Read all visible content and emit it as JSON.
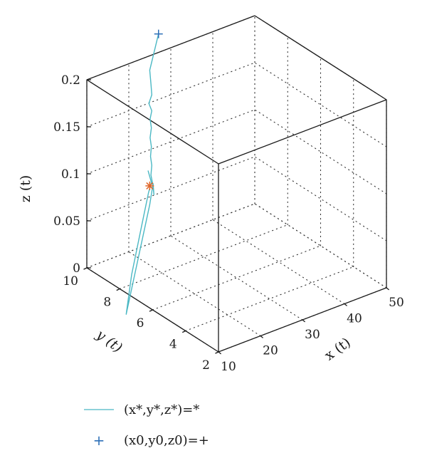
{
  "chart_data": {
    "type": "line3d",
    "title": "",
    "xlabel": "x (t)",
    "ylabel": "y (t)",
    "zlabel": "z (t)",
    "xlim": [
      10,
      50
    ],
    "ylim": [
      2,
      10
    ],
    "zlim": [
      0,
      0.2
    ],
    "xticks": [
      "10",
      "20",
      "30",
      "40",
      "50"
    ],
    "yticks": [
      "2",
      "4",
      "6",
      "8",
      "10"
    ],
    "zticks": [
      "0",
      "0.05",
      "0.1",
      "0.15",
      "0.2"
    ],
    "grid": true,
    "legend_position": "bottom",
    "series": [
      {
        "name": "(x*,y*,z*)=*",
        "color": "#4bb8c4",
        "kind": "line",
        "points": [
          [
            25.9,
            9.7,
            0.225
          ],
          [
            23.8,
            9.7,
            0.19
          ],
          [
            24.1,
            9.7,
            0.175
          ],
          [
            24.3,
            9.7,
            0.163
          ],
          [
            23.6,
            9.7,
            0.155
          ],
          [
            24.3,
            9.7,
            0.146
          ],
          [
            23.9,
            9.7,
            0.138
          ],
          [
            24.2,
            9.7,
            0.128
          ],
          [
            23.9,
            9.7,
            0.118
          ],
          [
            24.2,
            9.7,
            0.108
          ],
          [
            24.0,
            9.7,
            0.098
          ],
          [
            24.3,
            9.7,
            0.088
          ],
          [
            24.1,
            9.7,
            0.078
          ],
          [
            24.5,
            9.7,
            0.068
          ],
          [
            24.8,
            9.7,
            0.056
          ],
          [
            24.6,
            9.7,
            0.068
          ],
          [
            23.8,
            9.7,
            0.047
          ],
          [
            18.2,
            9.7,
            -0.06
          ],
          [
            19.5,
            9.7,
            -0.02
          ],
          [
            22.0,
            9.7,
            0.03
          ],
          [
            23.5,
            9.7,
            0.06
          ],
          [
            24.2,
            9.7,
            0.07
          ],
          [
            23.4,
            9.7,
            0.084
          ]
        ]
      },
      {
        "name": "(x0,y0,z0)=+",
        "color": "#2c6fb7",
        "kind": "marker",
        "marker": "+",
        "points": [
          [
            25.9,
            9.7,
            0.225
          ]
        ]
      },
      {
        "name": "",
        "color": "#e0662a",
        "kind": "marker",
        "marker": "*",
        "points": [
          [
            23.8,
            9.7,
            0.067
          ]
        ]
      }
    ]
  }
}
